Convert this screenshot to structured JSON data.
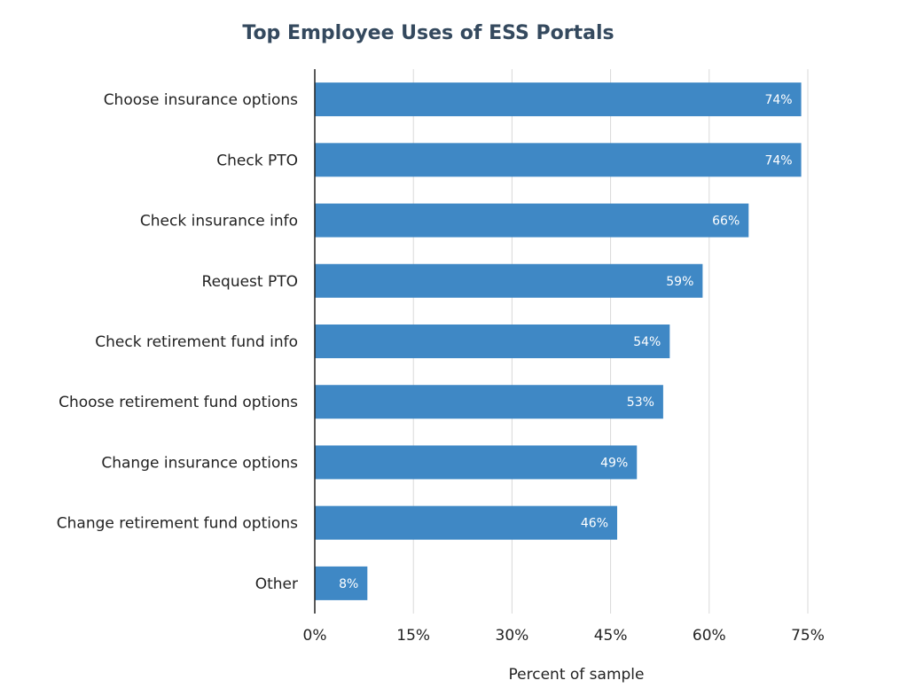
{
  "chart_data": {
    "type": "bar",
    "orientation": "horizontal",
    "title": "Top Employee Uses of ESS Portals",
    "xlabel": "Percent of sample",
    "ylabel": "",
    "categories": [
      "Choose insurance options",
      "Check PTO",
      "Check insurance info",
      "Request PTO",
      "Check retirement fund info",
      "Choose retirement fund options",
      "Change insurance options",
      "Change retirement fund options",
      "Other"
    ],
    "values": [
      74,
      74,
      66,
      59,
      54,
      53,
      49,
      46,
      8
    ],
    "data_labels": [
      "74%",
      "74%",
      "66%",
      "59%",
      "54%",
      "53%",
      "49%",
      "46%",
      "8%"
    ],
    "xlim": [
      0,
      75
    ],
    "x_ticks": [
      0,
      15,
      30,
      45,
      60,
      75
    ],
    "x_tick_labels": [
      "0%",
      "15%",
      "30%",
      "45%",
      "60%",
      "75%"
    ],
    "grid": "vertical",
    "legend": "none",
    "bar_color": "#3f88c5"
  }
}
